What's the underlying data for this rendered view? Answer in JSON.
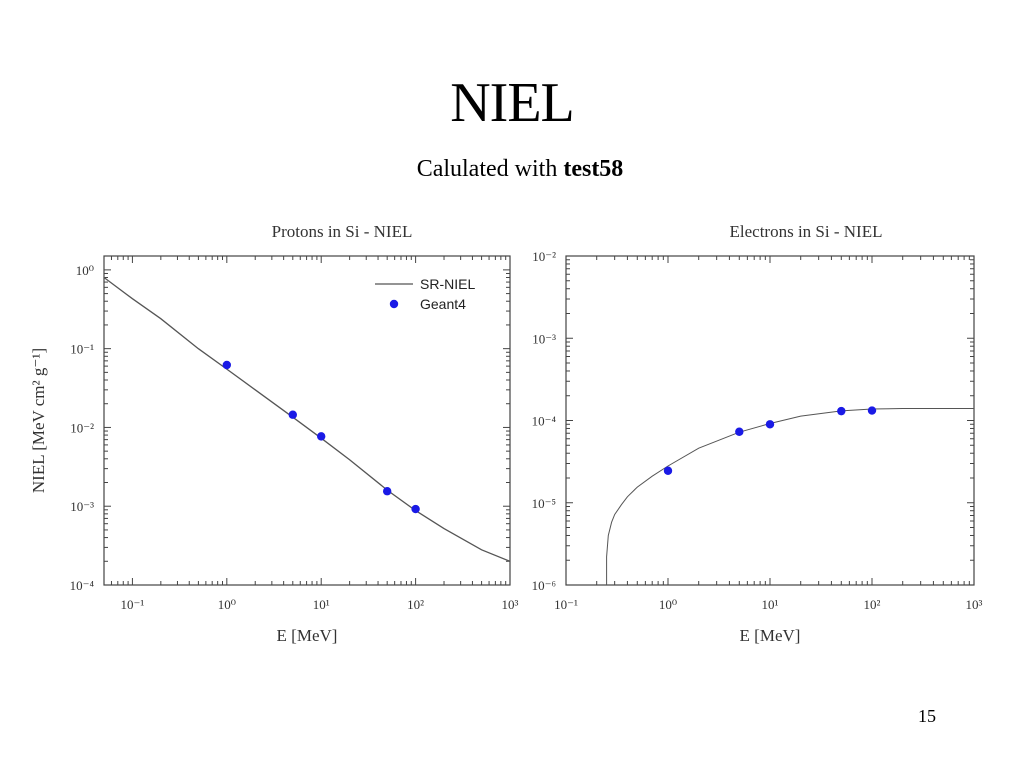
{
  "slide": {
    "title": "NIEL",
    "subtitle_prefix": "Calulated with ",
    "subtitle_bold": "test58",
    "page_number": "15"
  },
  "colors": {
    "curve": "#555555",
    "points": "#1a1ae6",
    "axes": "#444444"
  },
  "chart_data": [
    {
      "type": "line",
      "title": "Protons in Si - NIEL",
      "xlabel": "E [MeV]",
      "ylabel": "NIEL [MeV cm² g⁻¹]",
      "x_scale": "log",
      "y_scale": "log",
      "xlim": [
        0.05,
        1000
      ],
      "ylim": [
        0.0001,
        1.5
      ],
      "x_ticks": [
        "10⁻¹",
        "10⁰",
        "10¹",
        "10²",
        "10³"
      ],
      "y_ticks": [
        "10⁻⁴",
        "10⁻³",
        "10⁻²",
        "10⁻¹",
        "10⁰"
      ],
      "legend_position": "top-right",
      "series": [
        {
          "name": "SR-NIEL",
          "kind": "line",
          "x": [
            0.05,
            0.1,
            0.2,
            0.5,
            1,
            2,
            5,
            10,
            20,
            50,
            100,
            200,
            500,
            1000
          ],
          "y": [
            0.8,
            0.43,
            0.24,
            0.1,
            0.055,
            0.03,
            0.0135,
            0.0073,
            0.0039,
            0.0016,
            0.00088,
            0.00052,
            0.00028,
            0.0002
          ]
        },
        {
          "name": "Geant4",
          "kind": "scatter",
          "x": [
            1,
            5,
            10,
            50,
            100
          ],
          "y": [
            0.062,
            0.0145,
            0.0077,
            0.00155,
            0.00092
          ]
        }
      ]
    },
    {
      "type": "line",
      "title": "Electrons in Si - NIEL",
      "xlabel": "E [MeV]",
      "ylabel": "",
      "x_scale": "log",
      "y_scale": "log",
      "xlim": [
        0.1,
        1000
      ],
      "ylim": [
        1e-06,
        0.01
      ],
      "x_ticks": [
        "10⁻¹",
        "10⁰",
        "10¹",
        "10²",
        "10³"
      ],
      "y_ticks": [
        "10⁻⁶",
        "10⁻⁵",
        "10⁻⁴",
        "10⁻³",
        "10⁻²"
      ],
      "series": [
        {
          "name": "",
          "kind": "line",
          "x": [
            0.25,
            0.26,
            0.28,
            0.3,
            0.35,
            0.4,
            0.5,
            0.7,
            1,
            2,
            5,
            10,
            20,
            50,
            100,
            200,
            500,
            1000
          ],
          "y": [
            2.2e-06,
            4e-06,
            5.8e-06,
            7.2e-06,
            9.5e-06,
            1.18e-05,
            1.55e-05,
            2.1e-05,
            2.8e-05,
            4.6e-05,
            7.2e-05,
            9.2e-05,
            0.000113,
            0.000131,
            0.000138,
            0.00014,
            0.00014,
            0.00014
          ]
        },
        {
          "name": "",
          "kind": "scatter",
          "x": [
            1,
            5,
            10,
            50,
            100
          ],
          "y": [
            2.45e-05,
            7.3e-05,
            9e-05,
            0.00013,
            0.000132
          ]
        }
      ]
    }
  ]
}
